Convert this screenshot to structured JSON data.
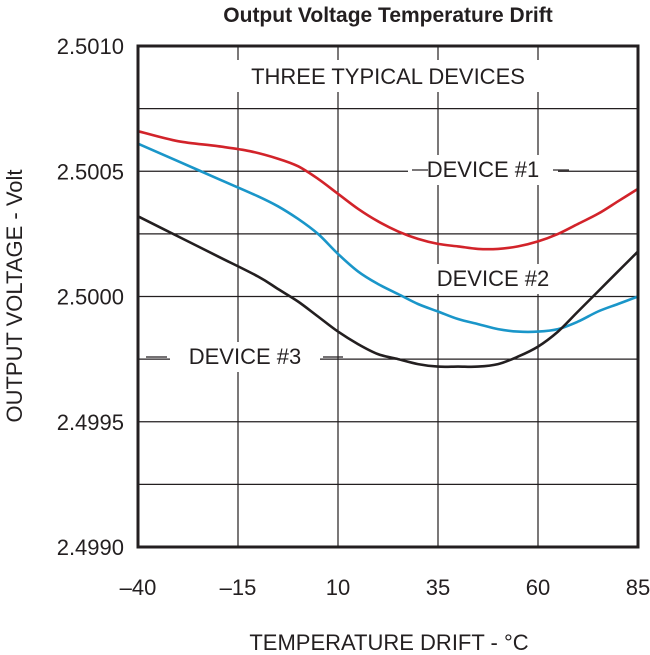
{
  "chart_data": {
    "type": "line",
    "title": "Output Voltage Temperature Drift",
    "xlabel": "TEMPERATURE DRIFT - °C",
    "ylabel": "OUTPUT VOLTAGE - Volt",
    "xlim": [
      -40,
      85
    ],
    "ylim": [
      2.499,
      2.501
    ],
    "x_ticks": [
      -40,
      -15,
      10,
      35,
      60,
      85
    ],
    "x_tick_labels": [
      "–40",
      "–15",
      "10",
      "35",
      "60",
      "85"
    ],
    "y_ticks": [
      2.499,
      2.4995,
      2.5,
      2.5005,
      2.501
    ],
    "y_tick_labels": [
      "2.4990",
      "2.4995",
      "2.5000",
      "2.5005",
      "2.5010"
    ],
    "grid": true,
    "annotation": "THREE TYPICAL DEVICES",
    "series": [
      {
        "name": "DEVICE #1",
        "color": "#d2232a",
        "x": [
          -40,
          -30,
          -20,
          -12,
          -5,
          0,
          5,
          10,
          15,
          20,
          25,
          30,
          35,
          40,
          45,
          50,
          55,
          60,
          65,
          70,
          75,
          80,
          85
        ],
        "y": [
          2.50066,
          2.50062,
          2.5006,
          2.50058,
          2.50055,
          2.50052,
          2.50047,
          2.50041,
          2.50035,
          2.5003,
          2.50026,
          2.50023,
          2.50021,
          2.5002,
          2.50019,
          2.50019,
          2.5002,
          2.50022,
          2.50025,
          2.50029,
          2.50033,
          2.50038,
          2.50043
        ]
      },
      {
        "name": "DEVICE #2",
        "color": "#1a96c9",
        "x": [
          -40,
          -30,
          -20,
          -10,
          -5,
          0,
          5,
          10,
          15,
          20,
          25,
          30,
          35,
          40,
          45,
          50,
          55,
          60,
          65,
          70,
          75,
          80,
          85
        ],
        "y": [
          2.50061,
          2.50054,
          2.50047,
          2.5004,
          2.50036,
          2.50031,
          2.50025,
          2.50017,
          2.5001,
          2.50005,
          2.50001,
          2.49997,
          2.49994,
          2.49991,
          2.49989,
          2.49987,
          2.49986,
          2.49986,
          2.49987,
          2.4999,
          2.49994,
          2.49997,
          2.5
        ]
      },
      {
        "name": "DEVICE #3",
        "color": "#231f20",
        "x": [
          -40,
          -30,
          -20,
          -10,
          -5,
          0,
          5,
          10,
          15,
          20,
          25,
          30,
          35,
          40,
          45,
          50,
          55,
          60,
          65,
          70,
          75,
          80,
          85
        ],
        "y": [
          2.50032,
          2.50024,
          2.50016,
          2.50008,
          2.50003,
          2.49998,
          2.49992,
          2.49986,
          2.49981,
          2.49977,
          2.49975,
          2.49973,
          2.49972,
          2.49972,
          2.49972,
          2.49973,
          2.49976,
          2.4998,
          2.49986,
          2.49994,
          2.50002,
          2.5001,
          2.50018
        ]
      }
    ]
  }
}
